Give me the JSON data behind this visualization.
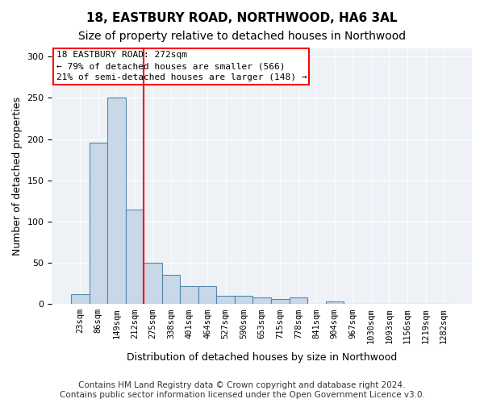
{
  "title1": "18, EASTBURY ROAD, NORTHWOOD, HA6 3AL",
  "title2": "Size of property relative to detached houses in Northwood",
  "xlabel": "Distribution of detached houses by size in Northwood",
  "ylabel": "Number of detached properties",
  "bin_labels": [
    "23sqm",
    "86sqm",
    "149sqm",
    "212sqm",
    "275sqm",
    "338sqm",
    "401sqm",
    "464sqm",
    "527sqm",
    "590sqm",
    "653sqm",
    "715sqm",
    "778sqm",
    "841sqm",
    "904sqm",
    "967sqm",
    "1030sqm",
    "1093sqm",
    "1156sqm",
    "1219sqm",
    "1282sqm"
  ],
  "bar_heights": [
    12,
    196,
    250,
    115,
    50,
    35,
    22,
    22,
    10,
    10,
    8,
    6,
    8,
    0,
    3,
    0,
    0,
    0,
    0,
    0,
    0
  ],
  "bar_color": "#c8d8e8",
  "bar_edge_color": "#5588aa",
  "vline_pos": 3.5,
  "vline_color": "red",
  "annotation_box_text": "18 EASTBURY ROAD: 272sqm\n← 79% of detached houses are smaller (566)\n21% of semi-detached houses are larger (148) →",
  "annotation_box_color": "white",
  "annotation_box_edge_color": "red",
  "footer_text": "Contains HM Land Registry data © Crown copyright and database right 2024.\nContains public sector information licensed under the Open Government Licence v3.0.",
  "ylim": [
    0,
    310
  ],
  "yticks": [
    0,
    50,
    100,
    150,
    200,
    250,
    300
  ],
  "bg_color": "#eef2f7",
  "title1_fontsize": 11,
  "title2_fontsize": 10,
  "xlabel_fontsize": 9,
  "ylabel_fontsize": 9,
  "footer_fontsize": 7.5,
  "annotation_fontsize": 8
}
